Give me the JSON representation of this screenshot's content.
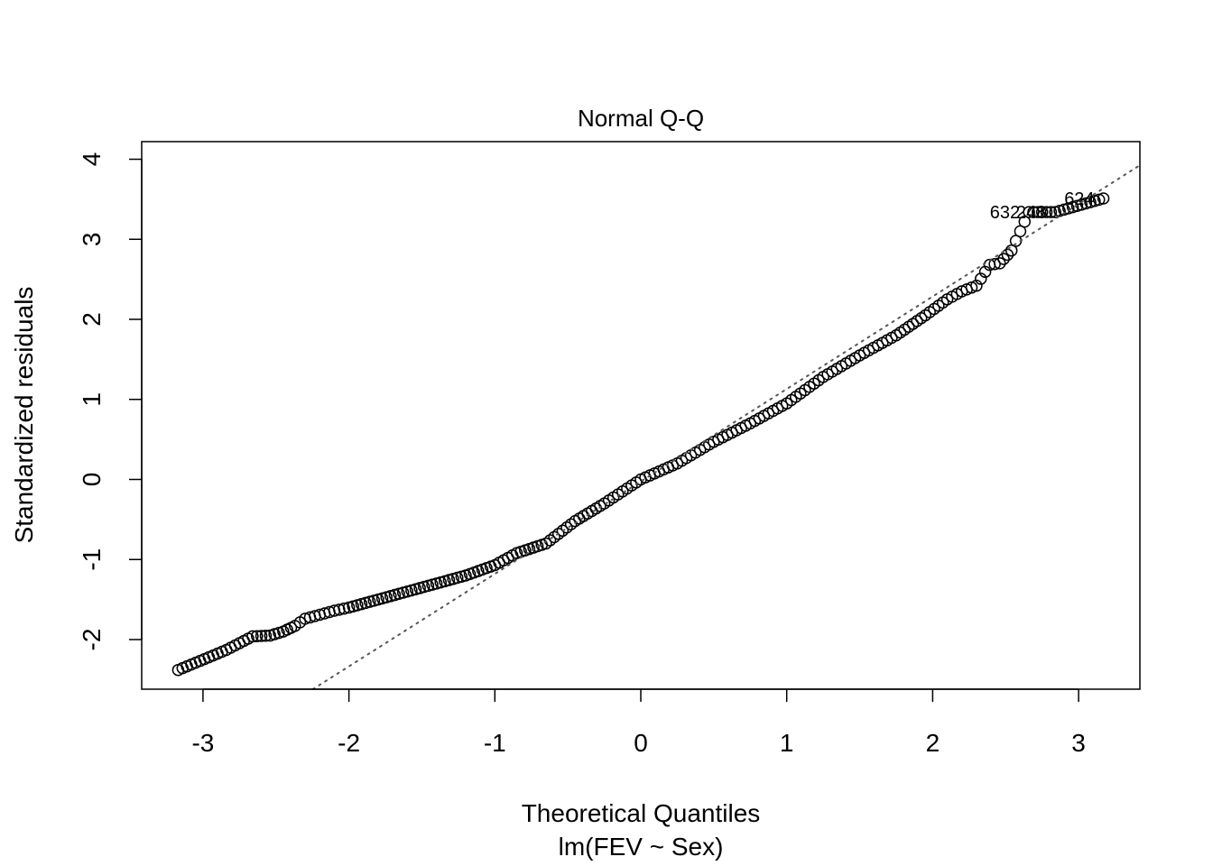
{
  "chart_data": {
    "type": "scatter",
    "title": "Normal Q-Q",
    "xlabel": "Theoretical Quantiles",
    "subtitle": "lm(FEV ~ Sex)",
    "ylabel": "Standardized residuals",
    "xlim": [
      -3.42,
      3.42
    ],
    "ylim": [
      -2.62,
      4.22
    ],
    "x_ticks": [
      -3,
      -2,
      -1,
      0,
      1,
      2,
      3
    ],
    "y_ticks": [
      -2,
      -1,
      0,
      1,
      2,
      3,
      4
    ],
    "x_tick_labels": [
      "-3",
      "-2",
      "-1",
      "0",
      "1",
      "2",
      "3"
    ],
    "y_tick_labels": [
      "-2",
      "-1",
      "0",
      "1",
      "2",
      "3",
      "4"
    ],
    "grid": false,
    "reference_line": {
      "style": "dotted",
      "color": "#555555",
      "points": [
        [
          -1,
          -1.18
        ],
        [
          3,
          3.44
        ]
      ]
    },
    "point_color": "#000000",
    "anchor_points": [
      [
        -3.17,
        -2.38
      ],
      [
        -2.84,
        -2.13
      ],
      [
        -2.66,
        -1.96
      ],
      [
        -2.54,
        -1.95
      ],
      [
        -2.45,
        -1.9
      ],
      [
        -2.37,
        -1.83
      ],
      [
        -2.3,
        -1.74
      ],
      [
        -2.2,
        -1.69
      ],
      [
        -2.1,
        -1.64
      ],
      [
        -2.0,
        -1.6
      ],
      [
        -1.8,
        -1.5
      ],
      [
        -1.6,
        -1.4
      ],
      [
        -1.4,
        -1.3
      ],
      [
        -1.2,
        -1.2
      ],
      [
        -1.0,
        -1.07
      ],
      [
        -0.85,
        -0.92
      ],
      [
        -0.65,
        -0.8
      ],
      [
        -0.45,
        -0.52
      ],
      [
        -0.25,
        -0.3
      ],
      [
        0.0,
        0.0
      ],
      [
        0.25,
        0.2
      ],
      [
        0.5,
        0.47
      ],
      [
        0.75,
        0.7
      ],
      [
        1.0,
        0.95
      ],
      [
        1.25,
        1.28
      ],
      [
        1.5,
        1.55
      ],
      [
        1.75,
        1.8
      ],
      [
        1.95,
        2.05
      ],
      [
        2.1,
        2.25
      ],
      [
        2.2,
        2.35
      ],
      [
        2.3,
        2.42
      ],
      [
        2.39,
        2.68
      ],
      [
        2.46,
        2.7
      ],
      [
        2.54,
        2.86
      ],
      [
        2.66,
        3.34
      ],
      [
        2.84,
        3.34
      ],
      [
        3.17,
        3.51
      ]
    ],
    "annotations": [
      {
        "label": "624",
        "x": 3.17,
        "y": 3.51
      },
      {
        "label": "248",
        "x": 2.84,
        "y": 3.34
      },
      {
        "label": "632",
        "x": 2.66,
        "y": 3.34
      }
    ]
  }
}
